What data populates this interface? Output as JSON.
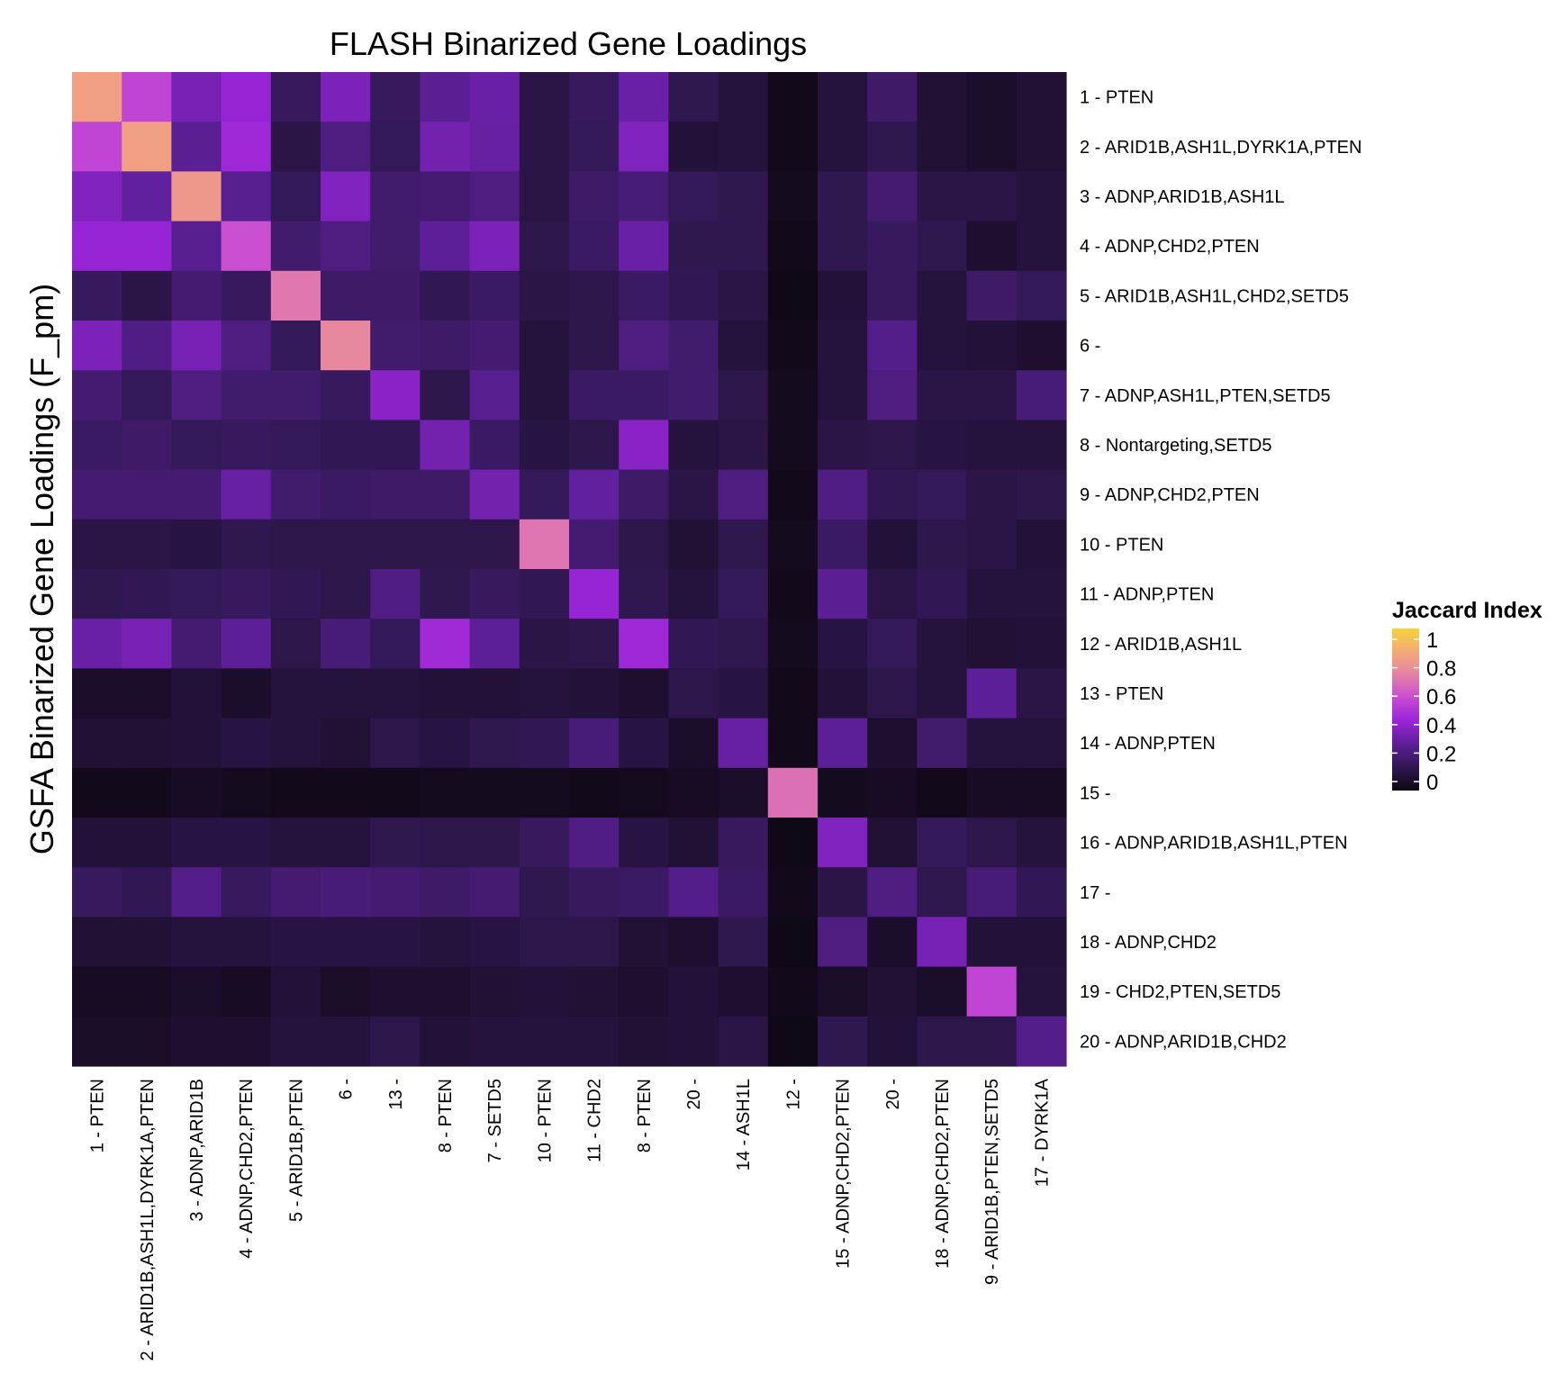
{
  "chart_data": {
    "type": "heatmap",
    "title": "FLASH Binarized Gene Loadings",
    "ylabel": "GSFA Binarized Gene Loadings (F_pm)",
    "xlabel": "",
    "row_labels": [
      "1 - PTEN",
      "2 - ARID1B,ASH1L,DYRK1A,PTEN",
      "3 - ADNP,ARID1B,ASH1L",
      "4 - ADNP,CHD2,PTEN",
      "5 - ARID1B,ASH1L,CHD2,SETD5",
      "6 -",
      "7 - ADNP,ASH1L,PTEN,SETD5",
      "8 - Nontargeting,SETD5",
      "9 - ADNP,CHD2,PTEN",
      "10 - PTEN",
      "11 - ADNP,PTEN",
      "12 - ARID1B,ASH1L",
      "13 - PTEN",
      "14 - ADNP,PTEN",
      "15 -",
      "16 - ADNP,ARID1B,ASH1L,PTEN",
      "17 -",
      "18 - ADNP,CHD2",
      "19 - CHD2,PTEN,SETD5",
      "20 - ADNP,ARID1B,CHD2"
    ],
    "col_labels": [
      "1 - PTEN",
      "2 - ARID1B,ASH1L,DYRK1A,PTEN",
      "3 - ADNP,ARID1B",
      "4 - ADNP,CHD2,PTEN",
      "5 - ARID1B,PTEN",
      "6 -",
      "13 -",
      "8 - PTEN",
      "7 - SETD5",
      "10 - PTEN",
      "11 - CHD2",
      "8 - PTEN",
      "20 -",
      "14 - ASH1L",
      "12 -",
      "15 - ADNP,CHD2,PTEN",
      "20 -",
      "18 - ADNP,CHD2,PTEN",
      "9 - ARID1B,PTEN,SETD5",
      "17 - DYRK1A"
    ],
    "values": [
      [
        0.82,
        0.55,
        0.35,
        0.42,
        0.17,
        0.36,
        0.17,
        0.28,
        0.32,
        0.12,
        0.17,
        0.32,
        0.14,
        0.1,
        0.02,
        0.1,
        0.19,
        0.08,
        0.06,
        0.08
      ],
      [
        0.55,
        0.82,
        0.28,
        0.44,
        0.12,
        0.24,
        0.16,
        0.34,
        0.31,
        0.12,
        0.16,
        0.37,
        0.09,
        0.1,
        0.02,
        0.1,
        0.14,
        0.08,
        0.06,
        0.08
      ],
      [
        0.37,
        0.3,
        0.79,
        0.27,
        0.16,
        0.37,
        0.2,
        0.21,
        0.24,
        0.12,
        0.19,
        0.22,
        0.16,
        0.14,
        0.03,
        0.14,
        0.21,
        0.12,
        0.12,
        0.1
      ],
      [
        0.42,
        0.42,
        0.27,
        0.58,
        0.2,
        0.24,
        0.2,
        0.29,
        0.36,
        0.13,
        0.18,
        0.32,
        0.14,
        0.14,
        0.02,
        0.14,
        0.17,
        0.14,
        0.07,
        0.1
      ],
      [
        0.17,
        0.12,
        0.21,
        0.17,
        0.69,
        0.19,
        0.19,
        0.15,
        0.18,
        0.12,
        0.13,
        0.18,
        0.15,
        0.12,
        0.01,
        0.09,
        0.17,
        0.1,
        0.19,
        0.16
      ],
      [
        0.36,
        0.25,
        0.35,
        0.24,
        0.16,
        0.74,
        0.2,
        0.19,
        0.21,
        0.1,
        0.13,
        0.24,
        0.2,
        0.1,
        0.02,
        0.1,
        0.26,
        0.1,
        0.09,
        0.07
      ],
      [
        0.21,
        0.16,
        0.24,
        0.2,
        0.2,
        0.17,
        0.39,
        0.13,
        0.27,
        0.1,
        0.18,
        0.18,
        0.2,
        0.13,
        0.03,
        0.1,
        0.24,
        0.12,
        0.12,
        0.22
      ],
      [
        0.18,
        0.19,
        0.16,
        0.17,
        0.16,
        0.15,
        0.15,
        0.34,
        0.18,
        0.11,
        0.13,
        0.39,
        0.1,
        0.12,
        0.03,
        0.12,
        0.13,
        0.11,
        0.1,
        0.1
      ],
      [
        0.21,
        0.21,
        0.21,
        0.31,
        0.2,
        0.18,
        0.19,
        0.19,
        0.34,
        0.16,
        0.3,
        0.19,
        0.12,
        0.24,
        0.02,
        0.25,
        0.15,
        0.16,
        0.12,
        0.13
      ],
      [
        0.12,
        0.12,
        0.11,
        0.14,
        0.13,
        0.13,
        0.13,
        0.13,
        0.13,
        0.68,
        0.21,
        0.13,
        0.08,
        0.14,
        0.03,
        0.18,
        0.09,
        0.13,
        0.12,
        0.09
      ],
      [
        0.14,
        0.15,
        0.16,
        0.17,
        0.15,
        0.13,
        0.25,
        0.14,
        0.17,
        0.15,
        0.42,
        0.14,
        0.1,
        0.16,
        0.02,
        0.28,
        0.12,
        0.15,
        0.1,
        0.1
      ],
      [
        0.32,
        0.35,
        0.21,
        0.29,
        0.13,
        0.22,
        0.16,
        0.45,
        0.29,
        0.12,
        0.13,
        0.44,
        0.15,
        0.14,
        0.03,
        0.11,
        0.16,
        0.1,
        0.08,
        0.09
      ],
      [
        0.06,
        0.06,
        0.09,
        0.06,
        0.1,
        0.1,
        0.1,
        0.09,
        0.09,
        0.1,
        0.09,
        0.07,
        0.13,
        0.11,
        0.02,
        0.09,
        0.13,
        0.1,
        0.29,
        0.12
      ],
      [
        0.08,
        0.08,
        0.09,
        0.11,
        0.1,
        0.08,
        0.13,
        0.11,
        0.14,
        0.15,
        0.22,
        0.11,
        0.06,
        0.31,
        0.02,
        0.29,
        0.07,
        0.2,
        0.1,
        0.1
      ],
      [
        0.02,
        0.02,
        0.04,
        0.03,
        0.02,
        0.02,
        0.02,
        0.03,
        0.03,
        0.03,
        0.02,
        0.03,
        0.04,
        0.06,
        0.67,
        0.03,
        0.04,
        0.02,
        0.04,
        0.04
      ],
      [
        0.09,
        0.09,
        0.11,
        0.11,
        0.1,
        0.1,
        0.14,
        0.13,
        0.13,
        0.17,
        0.25,
        0.11,
        0.08,
        0.17,
        0.01,
        0.37,
        0.08,
        0.16,
        0.13,
        0.1
      ],
      [
        0.17,
        0.15,
        0.26,
        0.17,
        0.21,
        0.22,
        0.21,
        0.19,
        0.21,
        0.14,
        0.17,
        0.18,
        0.26,
        0.18,
        0.02,
        0.12,
        0.24,
        0.14,
        0.22,
        0.15
      ],
      [
        0.08,
        0.08,
        0.1,
        0.1,
        0.11,
        0.11,
        0.11,
        0.1,
        0.11,
        0.13,
        0.13,
        0.08,
        0.07,
        0.14,
        0.01,
        0.24,
        0.06,
        0.35,
        0.09,
        0.09
      ],
      [
        0.04,
        0.04,
        0.06,
        0.04,
        0.09,
        0.05,
        0.07,
        0.07,
        0.08,
        0.09,
        0.08,
        0.07,
        0.09,
        0.07,
        0.02,
        0.05,
        0.08,
        0.06,
        0.55,
        0.1
      ],
      [
        0.05,
        0.05,
        0.07,
        0.07,
        0.1,
        0.1,
        0.13,
        0.09,
        0.1,
        0.1,
        0.1,
        0.08,
        0.09,
        0.12,
        0.01,
        0.14,
        0.09,
        0.13,
        0.13,
        0.26
      ]
    ],
    "colorscale": [
      "#0d0712",
      "#2f1850",
      "#5b1f96",
      "#9a24d8",
      "#c84bd3",
      "#e581a6",
      "#f4aa77",
      "#f7d23d"
    ],
    "zlim": [
      0,
      1
    ],
    "legend": {
      "title": "Jaccard Index",
      "ticks": [
        "1",
        "0.8",
        "0.6",
        "0.4",
        "0.2",
        "0"
      ],
      "placement": "right"
    },
    "grid": false
  }
}
